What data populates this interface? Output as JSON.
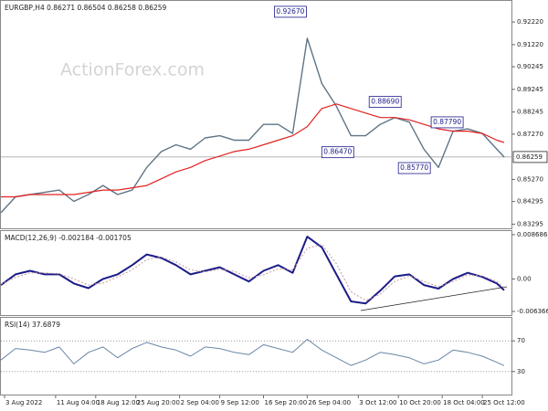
{
  "chart_data": [
    {
      "type": "line",
      "title": "EURGBP,H4 0.86271 0.86504 0.86258 0.86259",
      "watermark": "ActionForex.com",
      "x": [
        0,
        4,
        8,
        12,
        16,
        20,
        24,
        28,
        32,
        36,
        40,
        44,
        48,
        52,
        56,
        60,
        64,
        68,
        72,
        76,
        80,
        84,
        88,
        92,
        96,
        100,
        104,
        108,
        112,
        116,
        120,
        124,
        128,
        132,
        136,
        138
      ],
      "xlim": [
        0,
        140
      ],
      "ylim": [
        0.8311,
        0.9315
      ],
      "yticks": [
        {
          "value": 0.9222,
          "label": "0.92220"
        },
        {
          "value": 0.9122,
          "label": "0.91220"
        },
        {
          "value": 0.90245,
          "label": "0.90245"
        },
        {
          "value": 0.89245,
          "label": "0.89245"
        },
        {
          "value": 0.88245,
          "label": "0.88245"
        },
        {
          "value": 0.8727,
          "label": "0.87270"
        },
        {
          "value": 0.8527,
          "label": "0.85270"
        },
        {
          "value": 0.84295,
          "label": "0.84295"
        },
        {
          "value": 0.83295,
          "label": "0.83295"
        }
      ],
      "last_price": 0.86259,
      "series": [
        {
          "color": "#5f7585",
          "width": 1.4,
          "values": [
            0.838,
            0.845,
            0.846,
            0.847,
            0.848,
            0.843,
            0.846,
            0.85,
            0.846,
            0.848,
            0.858,
            0.865,
            0.868,
            0.866,
            0.871,
            0.872,
            0.87,
            0.87,
            0.877,
            0.877,
            0.873,
            0.915,
            0.895,
            0.885,
            0.872,
            0.872,
            0.877,
            0.88,
            0.878,
            0.866,
            0.858,
            0.874,
            0.875,
            0.873,
            0.866,
            0.86259
          ]
        },
        {
          "color": "#e32222",
          "width": 1.2,
          "values": [
            0.845,
            0.845,
            0.846,
            0.846,
            0.846,
            0.846,
            0.847,
            0.848,
            0.848,
            0.849,
            0.85,
            0.853,
            0.856,
            0.858,
            0.861,
            0.863,
            0.865,
            0.866,
            0.868,
            0.87,
            0.872,
            0.876,
            0.884,
            0.886,
            0.884,
            0.882,
            0.88,
            0.88,
            0.879,
            0.877,
            0.875,
            0.874,
            0.874,
            0.873,
            0.87,
            0.869
          ]
        }
      ],
      "annotations": [
        {
          "x": 84,
          "value": 0.9267,
          "label": "0.92670"
        },
        {
          "x": 97,
          "value": 0.8647,
          "label": "0.86470"
        },
        {
          "x": 110,
          "value": 0.8869,
          "label": "0.88690"
        },
        {
          "x": 118,
          "value": 0.8577,
          "label": "0.85770"
        },
        {
          "x": 127,
          "value": 0.8779,
          "label": "0.87790"
        }
      ]
    },
    {
      "type": "line",
      "title": "MACD(12,26,9) -0.002184 -0.001705",
      "x": [
        0,
        4,
        8,
        12,
        16,
        20,
        24,
        28,
        32,
        36,
        40,
        44,
        48,
        52,
        56,
        60,
        64,
        68,
        72,
        76,
        80,
        84,
        88,
        92,
        96,
        100,
        104,
        108,
        112,
        116,
        120,
        124,
        128,
        132,
        136,
        138
      ],
      "xlim": [
        0,
        140
      ],
      "ylim": [
        -0.00709,
        0.00939
      ],
      "yticks": [
        0.008686,
        {
          "value": 0,
          "label": "0.00"
        },
        -0.006366
      ],
      "series": [
        {
          "color": "#1c1c8a",
          "width": 2,
          "values": [
            -0.0012,
            0.0009,
            0.0016,
            0.0009,
            0.0009,
            -0.0009,
            -0.0018,
            0,
            0.0009,
            0.0027,
            0.0048,
            0.0041,
            0.0027,
            0.0009,
            0.0016,
            0.0023,
            0.0009,
            -0.0005,
            0.0016,
            0.0027,
            0.0012,
            0.0083,
            0.0062,
            0.0009,
            -0.0044,
            -0.0048,
            -0.0023,
            0.0005,
            0.0009,
            -0.0012,
            -0.0019,
            0,
            0.0012,
            0.0004,
            -0.0009,
            -0.0022
          ]
        },
        {
          "color": "#c49a9a",
          "width": 1,
          "dashed": true,
          "values": [
            -0.001,
            0.0003,
            0.0012,
            0.0012,
            0.001,
            0,
            -0.0012,
            -0.0008,
            0.0004,
            0.0018,
            0.0038,
            0.0043,
            0.0033,
            0.0018,
            0.0014,
            0.0019,
            0.0015,
            0.0002,
            0.0008,
            0.002,
            0.0018,
            0.006,
            0.0068,
            0.003,
            -0.0025,
            -0.0042,
            -0.003,
            -0.0005,
            0.0006,
            -0.0005,
            -0.0015,
            -0.0005,
            0.0008,
            0.0006,
            -0.0005,
            -0.0017
          ]
        }
      ]
    },
    {
      "type": "line",
      "title": "RSI(14) 37.6879",
      "x": [
        0,
        4,
        8,
        12,
        16,
        20,
        24,
        28,
        32,
        36,
        40,
        44,
        48,
        52,
        56,
        60,
        64,
        68,
        72,
        76,
        80,
        84,
        88,
        92,
        96,
        100,
        104,
        108,
        112,
        116,
        120,
        124,
        128,
        132,
        136,
        138
      ],
      "xlim": [
        0,
        140
      ],
      "ylim": [
        0,
        100
      ],
      "yticks": [
        70,
        30
      ],
      "tick_lines": true,
      "xticks": [
        {
          "value": 1,
          "label": "3 Aug 2022"
        },
        {
          "value": 15,
          "label": "11 Aug 04:00"
        },
        {
          "value": 26,
          "label": "18 Aug 12:00"
        },
        {
          "value": 37,
          "label": "25 Aug 20:00"
        },
        {
          "value": 49,
          "label": "2 Sep 04:00"
        },
        {
          "value": 60,
          "label": "9 Sep 12:00"
        },
        {
          "value": 72,
          "label": "16 Sep 20:00"
        },
        {
          "value": 84,
          "label": "26 Sep 04:00"
        },
        {
          "value": 98,
          "label": "3 Oct 12:00"
        },
        {
          "value": 109,
          "label": "10 Oct 20:00"
        },
        {
          "value": 121,
          "label": "18 Oct 04:00"
        },
        {
          "value": 132,
          "label": "25 Oct 12:00"
        }
      ],
      "series": [
        {
          "color": "#6a86a6",
          "width": 1,
          "values": [
            45,
            60,
            58,
            55,
            62,
            40,
            55,
            62,
            48,
            60,
            68,
            62,
            58,
            50,
            62,
            60,
            55,
            52,
            65,
            60,
            55,
            72,
            58,
            48,
            38,
            45,
            55,
            52,
            48,
            40,
            45,
            58,
            55,
            50,
            42,
            37.6879
          ]
        }
      ]
    }
  ]
}
